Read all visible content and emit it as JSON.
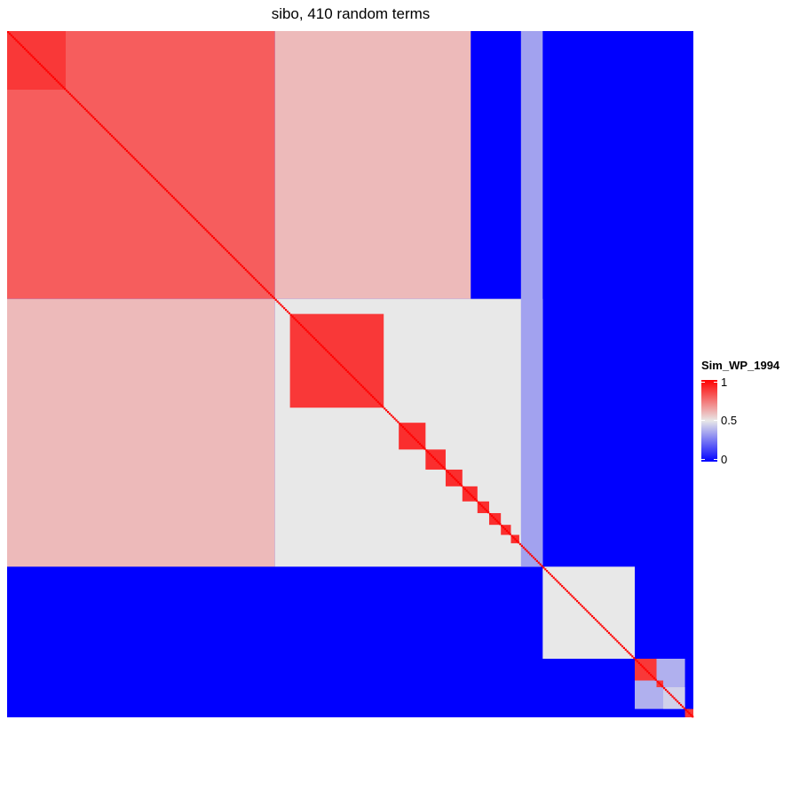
{
  "chart_data": {
    "type": "heatmap",
    "title": "sibo, 410 random terms",
    "n_terms": 410,
    "legend": {
      "title": "Sim_WP_1994",
      "ticks": [
        "1",
        "0.5",
        "0"
      ],
      "tick_values": [
        1,
        0.5,
        0
      ],
      "placement": "right",
      "colors": {
        "high": "#ff0000",
        "mid": "#e8e8e8",
        "low": "#0000ff"
      }
    },
    "value_range": [
      0,
      1
    ],
    "diagonal_value": 1,
    "background_value": 0,
    "blocks": [
      {
        "rows": [
          1,
          160
        ],
        "cols": [
          1,
          160
        ],
        "value": 0.8
      },
      {
        "rows": [
          1,
          160
        ],
        "cols": [
          161,
          277
        ],
        "value": 0.6
      },
      {
        "rows": [
          161,
          320
        ],
        "cols": [
          1,
          160
        ],
        "value": 0.6
      },
      {
        "rows": [
          161,
          320
        ],
        "cols": [
          161,
          320
        ],
        "value": 0.5
      },
      {
        "rows": [
          1,
          320
        ],
        "cols": [
          308,
          320
        ],
        "value": 0.35
      },
      {
        "rows": [
          1,
          35
        ],
        "cols": [
          1,
          35
        ],
        "value": 0.88
      },
      {
        "rows": [
          170,
          225
        ],
        "cols": [
          170,
          225
        ],
        "value": 0.88
      },
      {
        "rows": [
          235,
          250
        ],
        "cols": [
          235,
          250
        ],
        "value": 0.9
      },
      {
        "rows": [
          251,
          262
        ],
        "cols": [
          251,
          262
        ],
        "value": 0.9
      },
      {
        "rows": [
          263,
          272
        ],
        "cols": [
          263,
          272
        ],
        "value": 0.9
      },
      {
        "rows": [
          273,
          281
        ],
        "cols": [
          273,
          281
        ],
        "value": 0.9
      },
      {
        "rows": [
          282,
          288
        ],
        "cols": [
          282,
          288
        ],
        "value": 0.9
      },
      {
        "rows": [
          289,
          295
        ],
        "cols": [
          289,
          295
        ],
        "value": 0.9
      },
      {
        "rows": [
          296,
          301
        ],
        "cols": [
          296,
          301
        ],
        "value": 0.9
      },
      {
        "rows": [
          302,
          306
        ],
        "cols": [
          302,
          306
        ],
        "value": 0.9
      },
      {
        "rows": [
          321,
          375
        ],
        "cols": [
          321,
          375
        ],
        "value": 0.5
      },
      {
        "rows": [
          376,
          405
        ],
        "cols": [
          376,
          405
        ],
        "value": 0.38
      },
      {
        "rows": [
          376,
          388
        ],
        "cols": [
          376,
          388
        ],
        "value": 0.88
      },
      {
        "rows": [
          389,
          392
        ],
        "cols": [
          389,
          392
        ],
        "value": 0.88
      },
      {
        "rows": [
          393,
          405
        ],
        "cols": [
          393,
          405
        ],
        "value": 0.45
      },
      {
        "rows": [
          406,
          410
        ],
        "cols": [
          406,
          410
        ],
        "value": 0.88
      }
    ]
  }
}
